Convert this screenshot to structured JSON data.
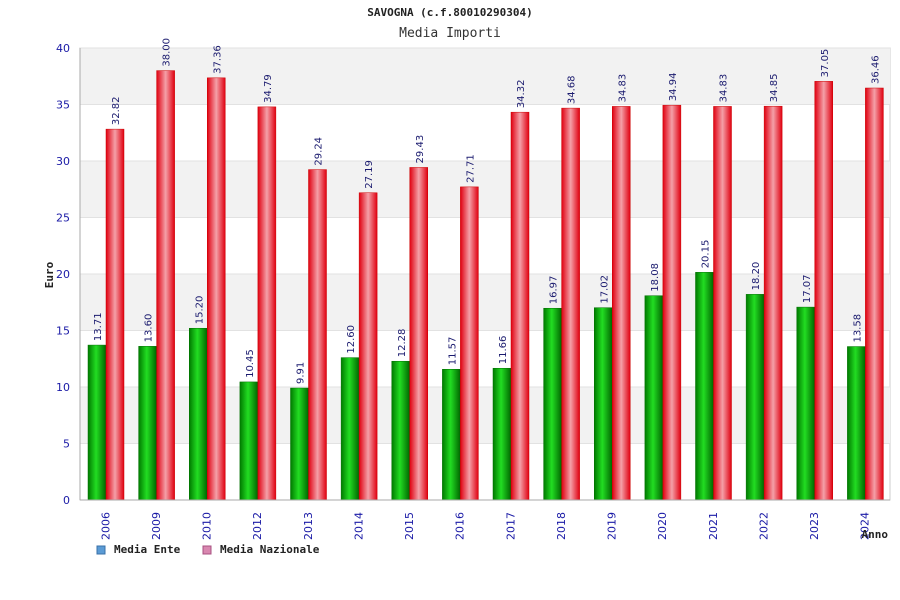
{
  "chart_data": {
    "type": "bar",
    "title": "SAVOGNA (c.f.80010290304)",
    "subtitle": "Media Importi",
    "xlabel": "Anno",
    "ylabel": "Euro",
    "ylim": [
      0,
      40
    ],
    "yticks": [
      0,
      5,
      10,
      15,
      20,
      25,
      30,
      35,
      40
    ],
    "grid": true,
    "legend_position": "bottom-left",
    "categories": [
      "2006",
      "2009",
      "2010",
      "2012",
      "2013",
      "2014",
      "2015",
      "2016",
      "2017",
      "2018",
      "2019",
      "2020",
      "2021",
      "2022",
      "2023",
      "2024"
    ],
    "series": [
      {
        "name": "Media Ente",
        "color": "#00b000",
        "legend_color": "#5b9bd5",
        "values": [
          13.71,
          13.6,
          15.2,
          10.45,
          9.91,
          12.6,
          12.28,
          11.57,
          11.66,
          16.97,
          17.02,
          18.08,
          20.15,
          18.2,
          17.07,
          13.58
        ],
        "labels": [
          "13.71",
          "13.60",
          "15.20",
          "10.45",
          "9.91",
          "12.60",
          "12.28",
          "11.57",
          "11.66",
          "16.97",
          "17.02",
          "18.08",
          "20.15",
          "18.20",
          "17.07",
          "13.58"
        ]
      },
      {
        "name": "Media Nazionale",
        "color": "#ee1111",
        "legend_color": "#d987b0",
        "values": [
          32.82,
          38.0,
          37.36,
          34.79,
          29.24,
          27.19,
          29.43,
          27.71,
          34.32,
          34.68,
          34.83,
          34.94,
          34.83,
          34.85,
          37.05,
          36.46
        ],
        "labels": [
          "32.82",
          "38.00",
          "37.36",
          "34.79",
          "29.24",
          "27.19",
          "29.43",
          "27.71",
          "34.32",
          "34.68",
          "34.83",
          "34.94",
          "34.83",
          "34.85",
          "37.05",
          "36.46"
        ]
      }
    ]
  }
}
